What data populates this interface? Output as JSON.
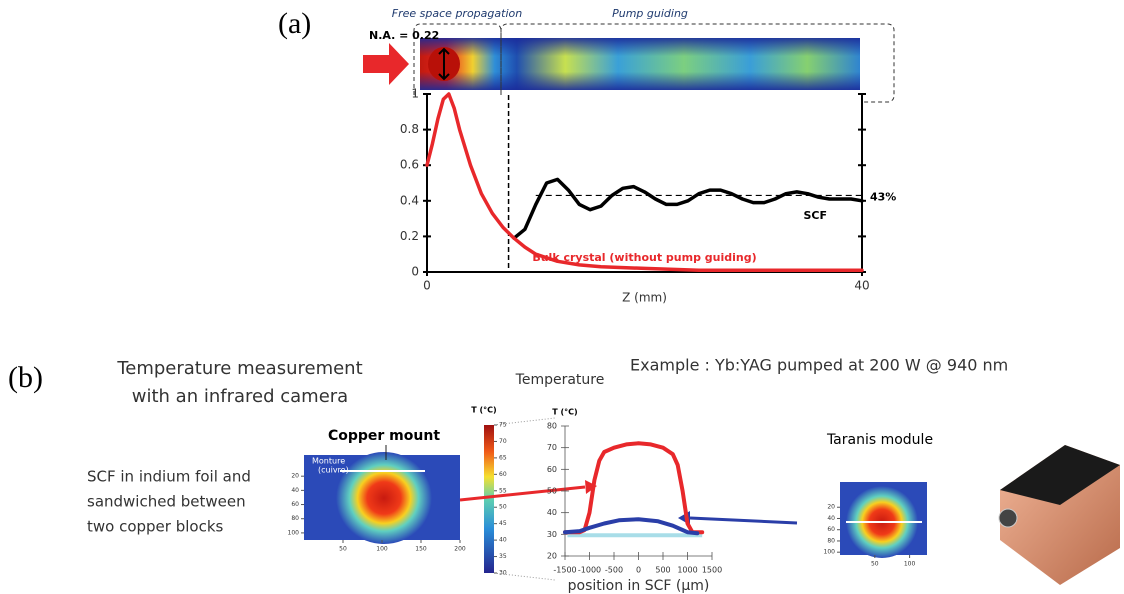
{
  "panel_a": {
    "label": "(a)",
    "beam": {
      "left_label": "Free space propagation",
      "right_label": "Pump guiding",
      "na_label": "N.A. = 0.22"
    },
    "chart_data": {
      "type": "line",
      "x_label": "Z (mm)",
      "xlim": [
        0,
        40
      ],
      "xticks": [
        0,
        40
      ],
      "ylim": [
        0,
        1
      ],
      "yticks": [
        0,
        0.2,
        0.4,
        0.6,
        0.8,
        1
      ],
      "divider_x": 7.5,
      "reference": {
        "value": 0.43,
        "label": "43%",
        "x_start": 10
      },
      "series": [
        {
          "name": "SCF",
          "color": "#000000",
          "x": [
            8,
            9,
            10,
            11,
            12,
            13,
            14,
            15,
            16,
            17,
            18,
            19,
            20,
            21,
            22,
            23,
            24,
            25,
            26,
            27,
            28,
            29,
            30,
            31,
            32,
            33,
            34,
            35,
            36,
            37,
            38,
            39,
            40
          ],
          "values": [
            0.19,
            0.24,
            0.38,
            0.5,
            0.52,
            0.46,
            0.38,
            0.35,
            0.37,
            0.43,
            0.47,
            0.48,
            0.45,
            0.41,
            0.38,
            0.38,
            0.4,
            0.44,
            0.46,
            0.46,
            0.44,
            0.41,
            0.39,
            0.39,
            0.41,
            0.44,
            0.45,
            0.44,
            0.42,
            0.41,
            0.41,
            0.41,
            0.4
          ]
        },
        {
          "name": "Bulk crystal (without pump guiding)",
          "color": "#e8282b",
          "x": [
            0,
            0.5,
            1,
            1.5,
            2,
            2.5,
            3,
            4,
            5,
            6,
            7,
            8,
            9,
            10,
            12,
            14,
            16,
            20,
            25,
            30,
            40
          ],
          "values": [
            0.6,
            0.72,
            0.86,
            0.97,
            1,
            0.92,
            0.8,
            0.6,
            0.44,
            0.33,
            0.25,
            0.19,
            0.14,
            0.1,
            0.06,
            0.04,
            0.03,
            0.02,
            0.01,
            0.01,
            0.01
          ]
        }
      ]
    }
  },
  "panel_b": {
    "label": "(b)",
    "title_lines": [
      "Temperature measurement",
      "with an infrared camera"
    ],
    "example": "Example : Yb:YAG pumped at 200 W @ 940 nm",
    "description_lines": [
      "SCF in indium foil and",
      "sandwiched between",
      "two copper blocks"
    ],
    "copper_mount": "Copper mount",
    "mount_lines": [
      "Monture",
      "(cuivre)"
    ],
    "left_map": {
      "xlim": [
        0,
        200
      ],
      "xticks": [
        50,
        100,
        150,
        200
      ],
      "ylim": [
        0,
        110
      ],
      "yticks": [
        20,
        40,
        60,
        80,
        100
      ]
    },
    "colorbar": {
      "label": "T (°C)",
      "lim": [
        30,
        75
      ],
      "ticks": [
        30,
        35,
        40,
        45,
        50,
        55,
        60,
        65,
        70,
        75
      ]
    },
    "chart_data": {
      "type": "line",
      "title": "Temperature",
      "y_label": "T (°C)",
      "x_label": "position in SCF (µm)",
      "xlim": [
        -1500,
        1500
      ],
      "xticks": [
        -1500,
        -1000,
        -500,
        0,
        500,
        1000,
        1500
      ],
      "ylim": [
        20,
        80
      ],
      "yticks": [
        20,
        30,
        40,
        50,
        60,
        70,
        80
      ],
      "series": [
        {
          "color": "#e8282b",
          "x": [
            -1500,
            -1200,
            -1100,
            -1000,
            -900,
            -800,
            -700,
            -500,
            -250,
            0,
            250,
            500,
            700,
            800,
            900,
            1000,
            1100,
            1300
          ],
          "values": [
            31,
            31,
            32,
            40,
            55,
            64,
            68,
            70,
            71.5,
            72,
            71.5,
            70,
            67,
            62,
            50,
            35,
            31,
            31
          ]
        },
        {
          "color": "#2a3ea8",
          "x": [
            -1500,
            -1200,
            -1000,
            -700,
            -400,
            0,
            400,
            700,
            900,
            1000,
            1200
          ],
          "values": [
            31,
            31.5,
            33,
            35,
            36.5,
            37,
            36,
            34,
            32,
            31,
            30.5
          ]
        }
      ]
    },
    "module": {
      "label": "Taranis module",
      "xlim": [
        0,
        125
      ],
      "xticks": [
        50,
        100
      ],
      "ylim": [
        0,
        105
      ],
      "yticks": [
        20,
        40,
        60,
        80,
        100
      ]
    }
  }
}
